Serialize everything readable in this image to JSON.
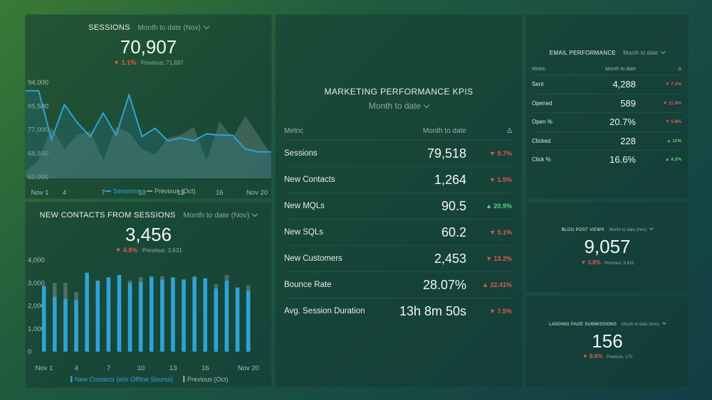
{
  "sessions": {
    "title": "Sessions",
    "period": "Month to date (Nov)",
    "value": "70,907",
    "change": "▼ 1.1%",
    "previous": "Previous: 71,697",
    "legend_current": "Sessions",
    "legend_previous": "Previous (Oct)"
  },
  "contacts": {
    "title": "New Contacts from Sessions",
    "period": "Month to date (Nov)",
    "value": "3,456",
    "change": "▼ 4.8%",
    "previous": "Previous: 3,631",
    "legend_current": "New Contacts (w/o Offline Source)",
    "legend_previous": "Previous (Oct)"
  },
  "kpi": {
    "title": "Marketing Performance KPIs",
    "period": "Month to date",
    "headers": {
      "metric": "Metric",
      "value": "Month to date",
      "delta": "Δ"
    },
    "rows": [
      {
        "metric": "Sessions",
        "value": "79,518",
        "delta": "▼ 9.7%",
        "dir": "down"
      },
      {
        "metric": "New Contacts",
        "value": "1,264",
        "delta": "▼ 1.5%",
        "dir": "down"
      },
      {
        "metric": "New MQLs",
        "value": "90.5",
        "delta": "▲ 20.9%",
        "dir": "up"
      },
      {
        "metric": "New SQLs",
        "value": "60.2",
        "delta": "▼ 5.1%",
        "dir": "down"
      },
      {
        "metric": "New Customers",
        "value": "2,453",
        "delta": "▼ 13.2%",
        "dir": "down"
      },
      {
        "metric": "Bounce Rate",
        "value": "28.07%",
        "delta": "▲ 22.41%",
        "dir": "down"
      },
      {
        "metric": "Avg. Session Duration",
        "value": "13h 8m 50s",
        "delta": "▼ 7.5%",
        "dir": "down"
      }
    ]
  },
  "email": {
    "title": "Email Performance",
    "period": "Month to date",
    "headers": {
      "metric": "Metric",
      "value": "Month to date",
      "delta": "Δ"
    },
    "rows": [
      {
        "metric": "Sent",
        "value": "4,288",
        "delta": "▼ 7.2%",
        "dir": "down"
      },
      {
        "metric": "Opened",
        "value": "589",
        "delta": "▼ 11.8%",
        "dir": "down"
      },
      {
        "metric": "Open %",
        "value": "20.7%",
        "delta": "▼ 5.8%",
        "dir": "down"
      },
      {
        "metric": "Clicked",
        "value": "228",
        "delta": "▲ 11%",
        "dir": "up"
      },
      {
        "metric": "Click %",
        "value": "16.6%",
        "delta": "▲ 4.2%",
        "dir": "up"
      }
    ]
  },
  "blog": {
    "title": "Blog Post Views",
    "period": "Month to date (Nov)",
    "value": "9,057",
    "change": "▼ 3.8%",
    "previous": "Previous: 9,415"
  },
  "landing": {
    "title": "Landing Page Submissions",
    "period": "Month to date (Nov)",
    "value": "156",
    "change": "▼ 8.6%",
    "previous": "Previous: 170"
  },
  "colors": {
    "accent": "#2ea3d8",
    "previous": "#8a9c96",
    "down": "#e35a4f",
    "up": "#5fd17a"
  },
  "chart_data": [
    {
      "type": "line",
      "title": "Sessions",
      "x": [
        1,
        2,
        3,
        4,
        5,
        6,
        7,
        8,
        9,
        10,
        11,
        12,
        13,
        14,
        15,
        16,
        17,
        18,
        19,
        20
      ],
      "xticks": [
        "Nov 1",
        "4",
        "7",
        "10",
        "13",
        "16",
        "Nov 20"
      ],
      "xtick_positions": [
        1,
        4,
        7,
        10,
        13,
        16,
        20
      ],
      "yticks": [
        "60,000",
        "68,500",
        "77,000",
        "85,500",
        "94,000"
      ],
      "ylim": [
        60000,
        94000
      ],
      "series": [
        {
          "name": "Sessions",
          "values": [
            91000,
            91000,
            73500,
            86000,
            79500,
            74500,
            83000,
            75000,
            89500,
            74500,
            77500,
            73000,
            74000,
            73000,
            75500,
            75000,
            75000,
            70000,
            69000,
            69000
          ]
        },
        {
          "name": "Previous (Oct)",
          "values": [
            62000,
            66000,
            78000,
            70000,
            75000,
            76500,
            66000,
            78000,
            76000,
            70000,
            68000,
            74000,
            75000,
            78000,
            66000,
            80000,
            74000,
            82000,
            75000,
            68000
          ]
        }
      ]
    },
    {
      "type": "bar",
      "title": "New Contacts from Sessions",
      "x": [
        1,
        2,
        3,
        4,
        5,
        6,
        7,
        8,
        9,
        10,
        11,
        12,
        13,
        14,
        15,
        16,
        17,
        18,
        19,
        20
      ],
      "xticks": [
        "Nov 1",
        "4",
        "7",
        "10",
        "13",
        "16",
        "Nov 20"
      ],
      "xtick_positions": [
        1,
        4,
        7,
        10,
        13,
        16,
        20
      ],
      "yticks": [
        "0",
        "1,000",
        "2,000",
        "3,000",
        "4,000"
      ],
      "ylim": [
        0,
        4000
      ],
      "series": [
        {
          "name": "New Contacts (w/o Offline Source)",
          "values": [
            2850,
            2400,
            2300,
            2250,
            3450,
            3100,
            3250,
            3350,
            3000,
            3050,
            3250,
            3150,
            3250,
            3150,
            3250,
            3200,
            2750,
            3100,
            2800,
            2650
          ]
        },
        {
          "name": "Previous (Oct)",
          "values": [
            2900,
            3000,
            3000,
            2600,
            2050,
            3050,
            3050,
            2350,
            3100,
            3250,
            3300,
            3300,
            2850,
            2950,
            3300,
            2950,
            2950,
            3350,
            2550,
            2900
          ]
        }
      ]
    }
  ]
}
